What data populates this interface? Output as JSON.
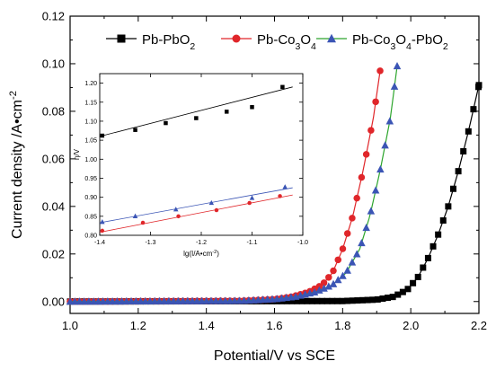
{
  "chart_data": [
    {
      "type": "line",
      "xlabel": "Potential/V vs SCE",
      "ylabel": "Current density /A•cm",
      "ylabel_sup": "-2",
      "xlim": [
        1.0,
        2.2
      ],
      "ylim": [
        -0.005,
        0.12
      ],
      "xticks": [
        "1.0",
        "1.2",
        "1.4",
        "1.6",
        "1.8",
        "2.0",
        "2.2"
      ],
      "yticks": [
        "0.00",
        "0.02",
        "0.04",
        "0.06",
        "0.08",
        "0.10",
        "0.12"
      ],
      "legend_position": "top",
      "series": [
        {
          "name": "Pb-PbO",
          "name_sub": "2",
          "color": "#000000",
          "marker": "square",
          "points": [
            [
              1.0,
              0.0
            ],
            [
              1.8,
              0.0002
            ],
            [
              1.9,
              0.0008
            ],
            [
              1.95,
              0.002
            ],
            [
              1.99,
              0.005
            ],
            [
              2.02,
              0.01
            ],
            [
              2.05,
              0.018
            ],
            [
              2.08,
              0.028
            ],
            [
              2.11,
              0.04
            ],
            [
              2.14,
              0.055
            ],
            [
              2.17,
              0.072
            ],
            [
              2.2,
              0.091
            ]
          ]
        },
        {
          "name": "Pb-Co",
          "name_sub": "3",
          "name_tail": "O",
          "name_sub2": "4",
          "color": "#e0262a",
          "marker": "circle",
          "points": [
            [
              1.0,
              0.0
            ],
            [
              1.5,
              0.0003
            ],
            [
              1.6,
              0.001
            ],
            [
              1.65,
              0.002
            ],
            [
              1.7,
              0.004
            ],
            [
              1.74,
              0.007
            ],
            [
              1.77,
              0.012
            ],
            [
              1.8,
              0.022
            ],
            [
              1.83,
              0.036
            ],
            [
              1.86,
              0.055
            ],
            [
              1.89,
              0.077
            ],
            [
              1.91,
              0.097
            ]
          ]
        },
        {
          "name": "Pb-Co",
          "name_sub": "3",
          "name_tail": "O",
          "name_sub2": "4",
          "name_tail2": "-PbO",
          "name_sub3": "2",
          "color": "#3b55b5",
          "line_color": "#2ca52c",
          "marker": "triangle",
          "points": [
            [
              1.0,
              0.0
            ],
            [
              1.5,
              0.0003
            ],
            [
              1.6,
              0.001
            ],
            [
              1.66,
              0.002
            ],
            [
              1.72,
              0.004
            ],
            [
              1.77,
              0.007
            ],
            [
              1.81,
              0.012
            ],
            [
              1.85,
              0.022
            ],
            [
              1.88,
              0.036
            ],
            [
              1.91,
              0.055
            ],
            [
              1.94,
              0.077
            ],
            [
              1.96,
              0.099
            ]
          ]
        }
      ]
    },
    {
      "type": "line",
      "location": "inset",
      "xlabel": "lg(I/A•cm",
      "xlabel_sup": "-2",
      "xlabel_tail": ")",
      "ylabel": "η/V",
      "xlim": [
        -1.4,
        -1.0
      ],
      "ylim": [
        0.8,
        1.225
      ],
      "xticks": [
        "-1.4",
        "-1.3",
        "-1.2",
        "-1.1",
        "-1.0"
      ],
      "yticks": [
        "0.80",
        "0.85",
        "0.90",
        "0.95",
        "1.00",
        "1.05",
        "1.10",
        "1.15",
        "1.20"
      ],
      "series": [
        {
          "color": "#000000",
          "marker": "square",
          "points": [
            [
              -1.395,
              1.062
            ],
            [
              -1.33,
              1.077
            ],
            [
              -1.27,
              1.095
            ],
            [
              -1.21,
              1.108
            ],
            [
              -1.15,
              1.125
            ],
            [
              -1.1,
              1.137
            ],
            [
              -1.04,
              1.19
            ]
          ],
          "fit": [
            [
              -1.4,
              1.06
            ],
            [
              -1.02,
              1.19
            ]
          ]
        },
        {
          "color": "#e0262a",
          "marker": "circle",
          "points": [
            [
              -1.395,
              0.812
            ],
            [
              -1.315,
              0.833
            ],
            [
              -1.245,
              0.85
            ],
            [
              -1.17,
              0.866
            ],
            [
              -1.105,
              0.885
            ],
            [
              -1.045,
              0.903
            ]
          ],
          "fit": [
            [
              -1.4,
              0.808
            ],
            [
              -1.02,
              0.906
            ]
          ]
        },
        {
          "color": "#3b55b5",
          "marker": "triangle",
          "points": [
            [
              -1.395,
              0.835
            ],
            [
              -1.33,
              0.85
            ],
            [
              -1.25,
              0.868
            ],
            [
              -1.18,
              0.885
            ],
            [
              -1.1,
              0.898
            ],
            [
              -1.035,
              0.927
            ]
          ],
          "fit": [
            [
              -1.4,
              0.833
            ],
            [
              -1.02,
              0.925
            ]
          ]
        }
      ]
    }
  ]
}
